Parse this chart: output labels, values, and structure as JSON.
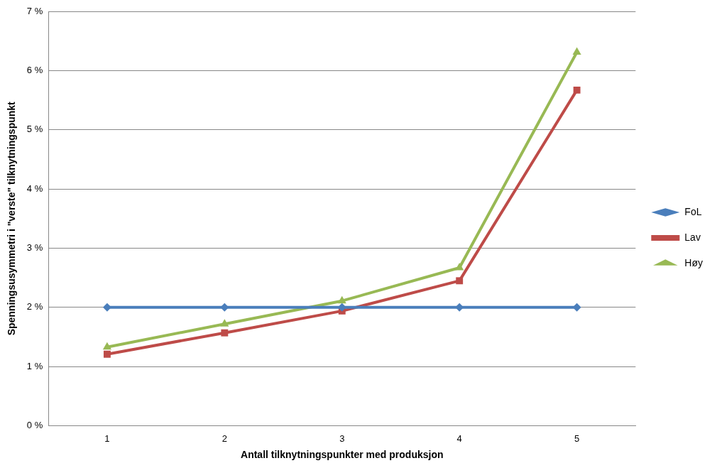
{
  "chart_data": {
    "type": "line",
    "xlabel": "Antall tilknytningspunkter med produksjon",
    "ylabel": "Spenningsusymmetri i \"verste\" tilknytningspunkt",
    "categories": [
      "1",
      "2",
      "3",
      "4",
      "5"
    ],
    "series": [
      {
        "name": "FoL",
        "color": "#4a7ebb",
        "marker": "diamond",
        "values": [
          2,
          2,
          2,
          2,
          2
        ]
      },
      {
        "name": "Lav",
        "color": "#be4b48",
        "marker": "square",
        "values": [
          1.21,
          1.57,
          1.94,
          2.45,
          5.67
        ]
      },
      {
        "name": "Høy",
        "color": "#98b954",
        "marker": "triangle",
        "values": [
          1.33,
          1.72,
          2.11,
          2.67,
          6.31
        ]
      }
    ],
    "ylim": [
      0,
      7
    ],
    "yticks": [
      {
        "value": 0,
        "label": "0 %"
      },
      {
        "value": 1,
        "label": "1 %"
      },
      {
        "value": 2,
        "label": "2 %"
      },
      {
        "value": 3,
        "label": "3 %"
      },
      {
        "value": 4,
        "label": "4 %"
      },
      {
        "value": 5,
        "label": "5 %"
      },
      {
        "value": 6,
        "label": "6 %"
      },
      {
        "value": 7,
        "label": "7 %"
      }
    ],
    "grid": "y",
    "legend": "right",
    "line_style": "solid"
  }
}
